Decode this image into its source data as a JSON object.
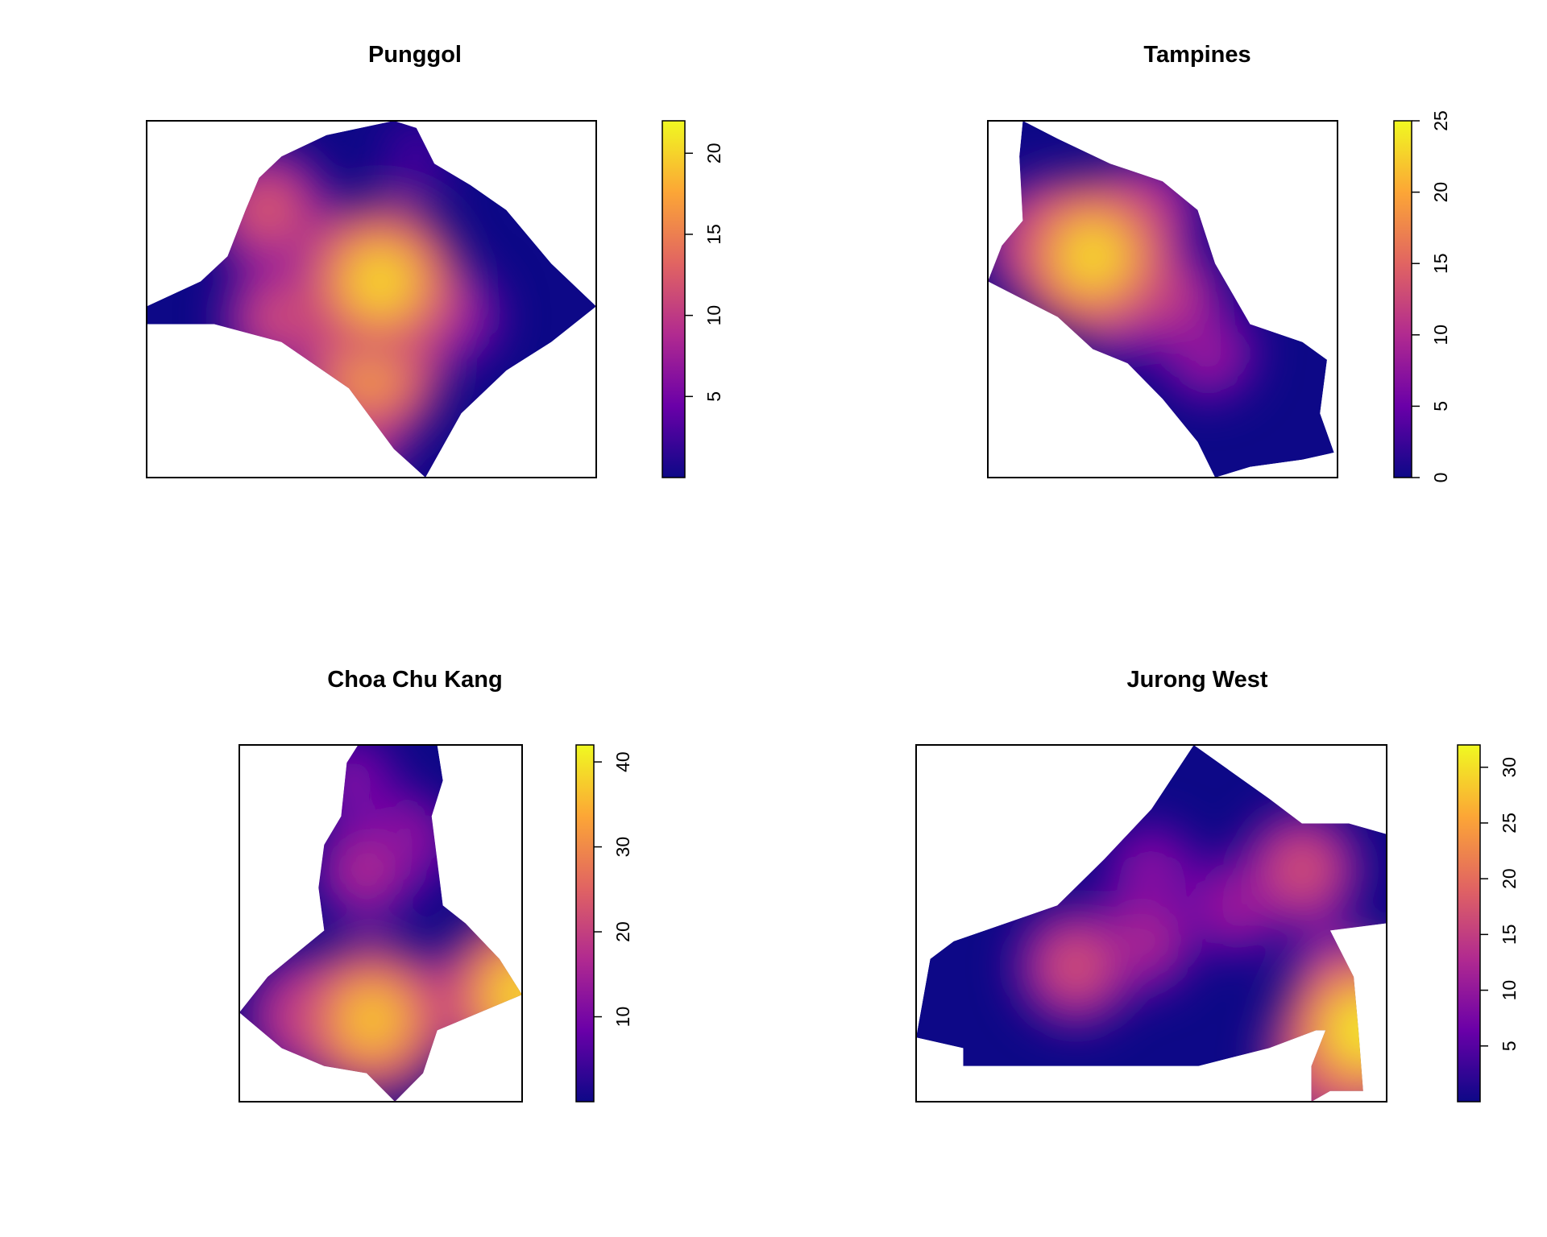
{
  "chart_data": [
    {
      "type": "heatmap",
      "title": "Punggol",
      "colormap": "plasma",
      "colors": [
        "#0d0887",
        "#6a00a8",
        "#b12a90",
        "#e16462",
        "#fca636",
        "#f0f921"
      ],
      "zlim": [
        0,
        22
      ],
      "colorbar_ticks": [
        "5",
        "10",
        "15",
        "20"
      ],
      "colorbar_tick_values": [
        5,
        10,
        15,
        20
      ],
      "hotspots": [
        {
          "u": 0.52,
          "v": 0.45,
          "value": 21
        },
        {
          "u": 0.5,
          "v": 0.7,
          "value": 18
        },
        {
          "u": 0.3,
          "v": 0.55,
          "value": 12
        },
        {
          "u": 0.27,
          "v": 0.25,
          "value": 13
        },
        {
          "u": 0.45,
          "v": 0.85,
          "value": 13
        },
        {
          "u": 0.68,
          "v": 0.55,
          "value": 8
        },
        {
          "u": 0.6,
          "v": 0.1,
          "value": 3
        }
      ],
      "polygon": [
        [
          0.3,
          0.1
        ],
        [
          0.4,
          0.04
        ],
        [
          0.55,
          0.0
        ],
        [
          0.6,
          0.02
        ],
        [
          0.64,
          0.12
        ],
        [
          0.72,
          0.18
        ],
        [
          0.8,
          0.25
        ],
        [
          0.9,
          0.4
        ],
        [
          1.0,
          0.52
        ],
        [
          0.9,
          0.62
        ],
        [
          0.8,
          0.7
        ],
        [
          0.7,
          0.82
        ],
        [
          0.62,
          1.0
        ],
        [
          0.55,
          0.92
        ],
        [
          0.45,
          0.75
        ],
        [
          0.3,
          0.62
        ],
        [
          0.15,
          0.57
        ],
        [
          0.0,
          0.57
        ],
        [
          0.0,
          0.52
        ],
        [
          0.12,
          0.45
        ],
        [
          0.18,
          0.38
        ],
        [
          0.22,
          0.25
        ],
        [
          0.25,
          0.16
        ]
      ]
    },
    {
      "type": "heatmap",
      "title": "Tampines",
      "colormap": "plasma",
      "colors": [
        "#0d0887",
        "#6a00a8",
        "#b12a90",
        "#e16462",
        "#fca636",
        "#f0f921"
      ],
      "zlim": [
        0,
        25
      ],
      "colorbar_ticks": [
        "0",
        "5",
        "10",
        "15",
        "20",
        "25"
      ],
      "colorbar_tick_values": [
        0,
        5,
        10,
        15,
        20,
        25
      ],
      "hotspots": [
        {
          "u": 0.3,
          "v": 0.38,
          "value": 24
        },
        {
          "u": 0.17,
          "v": 0.34,
          "value": 16
        },
        {
          "u": 0.45,
          "v": 0.26,
          "value": 12
        },
        {
          "u": 0.52,
          "v": 0.5,
          "value": 12
        },
        {
          "u": 0.63,
          "v": 0.65,
          "value": 9
        },
        {
          "u": 0.4,
          "v": 0.55,
          "value": 8
        }
      ],
      "polygon": [
        [
          0.1,
          0.0
        ],
        [
          0.2,
          0.05
        ],
        [
          0.35,
          0.12
        ],
        [
          0.5,
          0.17
        ],
        [
          0.6,
          0.25
        ],
        [
          0.65,
          0.4
        ],
        [
          0.75,
          0.57
        ],
        [
          0.9,
          0.62
        ],
        [
          0.97,
          0.67
        ],
        [
          0.95,
          0.82
        ],
        [
          0.99,
          0.93
        ],
        [
          0.9,
          0.95
        ],
        [
          0.75,
          0.97
        ],
        [
          0.65,
          1.0
        ],
        [
          0.6,
          0.9
        ],
        [
          0.5,
          0.78
        ],
        [
          0.4,
          0.68
        ],
        [
          0.3,
          0.64
        ],
        [
          0.2,
          0.55
        ],
        [
          0.0,
          0.45
        ],
        [
          0.04,
          0.35
        ],
        [
          0.1,
          0.28
        ],
        [
          0.09,
          0.1
        ]
      ]
    },
    {
      "type": "heatmap",
      "title": "Choa Chu Kang",
      "colormap": "plasma",
      "colors": [
        "#0d0887",
        "#6a00a8",
        "#b12a90",
        "#e16462",
        "#fca636",
        "#f0f921"
      ],
      "zlim": [
        0,
        42
      ],
      "colorbar_ticks": [
        "10",
        "20",
        "30",
        "40"
      ],
      "colorbar_tick_values": [
        10,
        20,
        30,
        40
      ],
      "hotspots": [
        {
          "u": 0.47,
          "v": 0.77,
          "value": 38
        },
        {
          "u": 1.0,
          "v": 0.7,
          "value": 40
        },
        {
          "u": 0.24,
          "v": 0.76,
          "value": 24
        },
        {
          "u": 0.45,
          "v": 0.35,
          "value": 18
        },
        {
          "u": 0.58,
          "v": 0.27,
          "value": 16
        },
        {
          "u": 0.4,
          "v": 0.1,
          "value": 12
        },
        {
          "u": 0.75,
          "v": 0.72,
          "value": 14
        }
      ],
      "polygon": [
        [
          0.42,
          0.0
        ],
        [
          0.7,
          0.0
        ],
        [
          0.72,
          0.1
        ],
        [
          0.68,
          0.2
        ],
        [
          0.72,
          0.45
        ],
        [
          0.8,
          0.5
        ],
        [
          0.92,
          0.6
        ],
        [
          1.0,
          0.7
        ],
        [
          0.85,
          0.75
        ],
        [
          0.7,
          0.8
        ],
        [
          0.65,
          0.92
        ],
        [
          0.55,
          1.0
        ],
        [
          0.45,
          0.92
        ],
        [
          0.3,
          0.9
        ],
        [
          0.15,
          0.85
        ],
        [
          0.0,
          0.75
        ],
        [
          0.1,
          0.65
        ],
        [
          0.3,
          0.52
        ],
        [
          0.28,
          0.4
        ],
        [
          0.3,
          0.28
        ],
        [
          0.36,
          0.2
        ],
        [
          0.38,
          0.05
        ]
      ]
    },
    {
      "type": "heatmap",
      "title": "Jurong West",
      "colormap": "plasma",
      "colors": [
        "#0d0887",
        "#6a00a8",
        "#b12a90",
        "#e16462",
        "#fca636",
        "#f0f921"
      ],
      "zlim": [
        0,
        32
      ],
      "colorbar_ticks": [
        "5",
        "10",
        "15",
        "20",
        "25",
        "30"
      ],
      "colorbar_tick_values": [
        5,
        10,
        15,
        20,
        25,
        30
      ],
      "hotspots": [
        {
          "u": 0.34,
          "v": 0.62,
          "value": 18
        },
        {
          "u": 0.48,
          "v": 0.55,
          "value": 14
        },
        {
          "u": 0.82,
          "v": 0.35,
          "value": 18
        },
        {
          "u": 0.95,
          "v": 0.8,
          "value": 32
        },
        {
          "u": 0.9,
          "v": 0.88,
          "value": 26
        },
        {
          "u": 0.68,
          "v": 0.45,
          "value": 12
        },
        {
          "u": 0.5,
          "v": 0.35,
          "value": 10
        },
        {
          "u": 0.9,
          "v": 0.65,
          "value": 12
        }
      ],
      "polygon": [
        [
          0.59,
          0.0
        ],
        [
          0.75,
          0.15
        ],
        [
          0.82,
          0.22
        ],
        [
          0.92,
          0.22
        ],
        [
          1.0,
          0.25
        ],
        [
          1.0,
          0.5
        ],
        [
          0.88,
          0.52
        ],
        [
          0.93,
          0.65
        ],
        [
          0.94,
          0.8
        ],
        [
          0.95,
          0.97
        ],
        [
          0.88,
          0.97
        ],
        [
          0.84,
          1.0
        ],
        [
          0.84,
          0.9
        ],
        [
          0.87,
          0.8
        ],
        [
          0.85,
          0.8
        ],
        [
          0.75,
          0.85
        ],
        [
          0.6,
          0.9
        ],
        [
          0.1,
          0.9
        ],
        [
          0.1,
          0.85
        ],
        [
          0.0,
          0.82
        ],
        [
          0.03,
          0.6
        ],
        [
          0.08,
          0.55
        ],
        [
          0.3,
          0.45
        ],
        [
          0.4,
          0.32
        ],
        [
          0.5,
          0.18
        ]
      ]
    }
  ]
}
